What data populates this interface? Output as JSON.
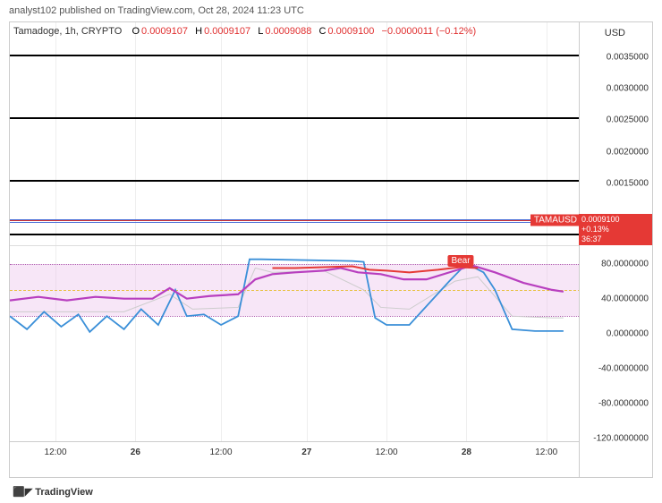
{
  "header": {
    "text": "analyst102 published on TradingView.com, Oct 28, 2024 11:23 UTC"
  },
  "info": {
    "symbol": "Tamadoge, 1h, CRYPTO",
    "o_label": "O",
    "o_val": "0.0009107",
    "h_label": "H",
    "h_val": "0.0009107",
    "l_label": "L",
    "l_val": "0.0009088",
    "c_label": "C",
    "c_val": "0.0009100",
    "chg_val": "−0.0000011 (−0.12%)"
  },
  "usd_label": "USD",
  "top_panel": {
    "ylim": [
      0.0005,
      0.0037
    ],
    "yticks": [
      0.0035,
      0.003,
      0.0025,
      0.002,
      0.0015
    ],
    "ytick_labels": [
      "0.0035000",
      "0.0030000",
      "0.0025000",
      "0.0020000",
      "0.0015000"
    ],
    "hlines": [
      0.00355,
      0.00255,
      0.00155,
      0.0007
    ],
    "price_line": 0.00091,
    "tam_label": "TAMAUSD",
    "badge_price": "0.0009100",
    "badge_chg": "+0.13%",
    "badge_time": "36:37"
  },
  "bot_panel": {
    "ylim": [
      -125,
      100
    ],
    "yticks": [
      80,
      40,
      0,
      -40,
      -80,
      -120
    ],
    "ytick_labels": [
      "80.0000000",
      "40.0000000",
      "0.0000000",
      "-40.0000000",
      "-80.0000000",
      "-120.0000000"
    ],
    "band_top": 80,
    "band_bot": 20,
    "band_fill": "#e8b8e8",
    "band_opacity": 0.35,
    "mid_line": 50,
    "bear_label": "Bear",
    "bear_x": 0.79,
    "bear_y": 76,
    "blue": {
      "color": "#3a8fd8",
      "width": 1.8,
      "pts": [
        [
          0,
          20
        ],
        [
          0.03,
          5
        ],
        [
          0.06,
          25
        ],
        [
          0.09,
          8
        ],
        [
          0.12,
          22
        ],
        [
          0.14,
          2
        ],
        [
          0.17,
          20
        ],
        [
          0.2,
          5
        ],
        [
          0.23,
          28
        ],
        [
          0.26,
          10
        ],
        [
          0.29,
          50
        ],
        [
          0.31,
          20
        ],
        [
          0.34,
          22
        ],
        [
          0.37,
          10
        ],
        [
          0.4,
          20
        ],
        [
          0.42,
          85
        ],
        [
          0.44,
          85
        ],
        [
          0.6,
          83
        ],
        [
          0.62,
          82
        ],
        [
          0.64,
          18
        ],
        [
          0.66,
          10
        ],
        [
          0.7,
          10
        ],
        [
          0.77,
          60
        ],
        [
          0.8,
          80
        ],
        [
          0.83,
          70
        ],
        [
          0.85,
          50
        ],
        [
          0.88,
          5
        ],
        [
          0.92,
          3
        ],
        [
          0.97,
          3
        ]
      ]
    },
    "purple": {
      "color": "#b83fbf",
      "width": 2.2,
      "pts": [
        [
          0,
          38
        ],
        [
          0.05,
          42
        ],
        [
          0.1,
          38
        ],
        [
          0.15,
          42
        ],
        [
          0.2,
          40
        ],
        [
          0.25,
          40
        ],
        [
          0.28,
          52
        ],
        [
          0.31,
          40
        ],
        [
          0.35,
          43
        ],
        [
          0.4,
          45
        ],
        [
          0.43,
          62
        ],
        [
          0.46,
          68
        ],
        [
          0.5,
          70
        ],
        [
          0.55,
          72
        ],
        [
          0.58,
          75
        ],
        [
          0.61,
          70
        ],
        [
          0.65,
          68
        ],
        [
          0.69,
          62
        ],
        [
          0.73,
          62
        ],
        [
          0.78,
          72
        ],
        [
          0.81,
          78
        ],
        [
          0.85,
          70
        ],
        [
          0.9,
          58
        ],
        [
          0.95,
          50
        ],
        [
          0.97,
          48
        ]
      ]
    },
    "redline": {
      "color": "#e53935",
      "width": 2,
      "pts": [
        [
          0.46,
          75
        ],
        [
          0.5,
          75
        ],
        [
          0.55,
          76
        ],
        [
          0.6,
          77
        ],
        [
          0.63,
          73
        ],
        [
          0.66,
          72
        ],
        [
          0.7,
          70
        ],
        [
          0.75,
          73
        ],
        [
          0.79,
          76
        ],
        [
          0.82,
          75
        ]
      ]
    },
    "gray": {
      "color": "#cccccc",
      "width": 1,
      "pts": [
        [
          0,
          25
        ],
        [
          0.1,
          25
        ],
        [
          0.2,
          25
        ],
        [
          0.28,
          45
        ],
        [
          0.32,
          28
        ],
        [
          0.4,
          30
        ],
        [
          0.43,
          75
        ],
        [
          0.46,
          70
        ],
        [
          0.55,
          72
        ],
        [
          0.62,
          50
        ],
        [
          0.65,
          30
        ],
        [
          0.7,
          28
        ],
        [
          0.78,
          60
        ],
        [
          0.82,
          65
        ],
        [
          0.88,
          20
        ],
        [
          0.95,
          18
        ],
        [
          0.97,
          18
        ]
      ]
    }
  },
  "x_axis": {
    "range": [
      0,
      1
    ],
    "ticks": [
      0.08,
      0.22,
      0.37,
      0.52,
      0.66,
      0.8,
      0.94
    ],
    "labels": [
      "12:00",
      "26",
      "12:00",
      "27",
      "12:00",
      "28",
      "12:00"
    ],
    "bold": [
      false,
      true,
      false,
      true,
      false,
      true,
      false
    ]
  },
  "footer": {
    "logo": "⬛◤ TradingView"
  },
  "colors": {
    "bg": "#ffffff",
    "border": "#cccccc",
    "text": "#333333"
  }
}
